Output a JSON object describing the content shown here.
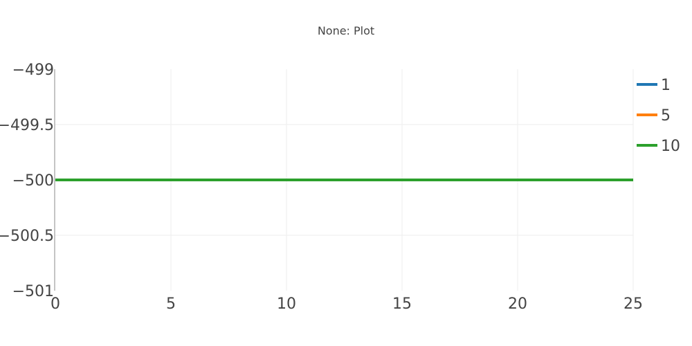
{
  "chart_data": {
    "type": "line",
    "title": "None: Plot",
    "xlabel": "",
    "ylabel": "",
    "xlim": [
      0,
      25
    ],
    "ylim": [
      -501,
      -499
    ],
    "xticks": [
      0,
      5,
      10,
      15,
      20,
      25
    ],
    "xtick_labels": [
      "0",
      "5",
      "10",
      "15",
      "20",
      "25"
    ],
    "yticks": [
      -499,
      -499.5,
      -500,
      -500.5,
      -501
    ],
    "ytick_labels": [
      "−499",
      "−499.5",
      "−500",
      "−500.5",
      "−501"
    ],
    "grid": true,
    "legend_position": "top-right",
    "series": [
      {
        "name": "1",
        "color": "#1f77b4",
        "x": [
          0,
          25
        ],
        "y": [
          -500,
          -500
        ]
      },
      {
        "name": "5",
        "color": "#ff7f0e",
        "x": [
          0,
          25
        ],
        "y": [
          -500,
          -500
        ]
      },
      {
        "name": "10",
        "color": "#2ca02c",
        "x": [
          0,
          25
        ],
        "y": [
          -500,
          -500
        ]
      }
    ]
  }
}
